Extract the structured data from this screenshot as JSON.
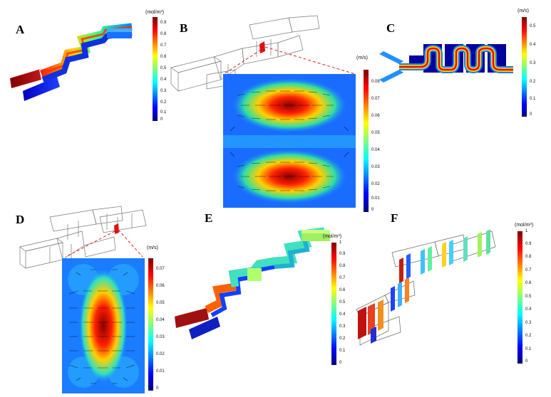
{
  "figure": {
    "panels": [
      {
        "id": "A",
        "label": "A",
        "colorbar": {
          "unit": "(mol/m³)",
          "ticks": [
            "0.9",
            "0.8",
            "0.7",
            "0.6",
            "0.5",
            "0.4",
            "0.3",
            "0.2",
            "0.1",
            "0"
          ],
          "range": [
            0,
            0.95
          ]
        }
      },
      {
        "id": "B",
        "label": "B",
        "colorbar": {
          "unit": "(m/s)",
          "ticks": [
            "0.08",
            "0.07",
            "0.06",
            "0.05",
            "0.04",
            "0.03",
            "0.02",
            "0.01",
            "0"
          ],
          "range": [
            0,
            0.085
          ]
        }
      },
      {
        "id": "C",
        "label": "C",
        "colorbar": {
          "unit": "(m/s)",
          "ticks": [
            "0.5",
            "0.4",
            "0.3",
            "0.2",
            "0.1",
            "0"
          ],
          "range": [
            0,
            0.55
          ]
        }
      },
      {
        "id": "D",
        "label": "D",
        "colorbar": {
          "unit": "(m/s)",
          "ticks": [
            "0.07",
            "0.06",
            "0.05",
            "0.04",
            "0.03",
            "0.02",
            "0.01",
            "0"
          ],
          "range": [
            0,
            0.075
          ]
        }
      },
      {
        "id": "E",
        "label": "E",
        "colorbar": {
          "unit": "(mol/m³)",
          "ticks": [
            "1",
            "0.9",
            "0.8",
            "0.7",
            "0.6",
            "0.5",
            "0.4",
            "0.3",
            "0.2",
            "0.1",
            "0"
          ],
          "range": [
            0,
            1
          ]
        }
      },
      {
        "id": "F",
        "label": "F",
        "colorbar": {
          "unit": "(mol/m³)",
          "ticks": [
            "1",
            "0.9",
            "0.8",
            "0.7",
            "0.6",
            "0.5",
            "0.4",
            "0.3",
            "0.2",
            "0.1",
            "0"
          ],
          "range": [
            0,
            1
          ]
        }
      }
    ],
    "colormap": [
      "#00007f",
      "#0000ff",
      "#0080ff",
      "#00ffff",
      "#80ff80",
      "#ffff00",
      "#ff8000",
      "#ff0000",
      "#7f0000"
    ]
  }
}
